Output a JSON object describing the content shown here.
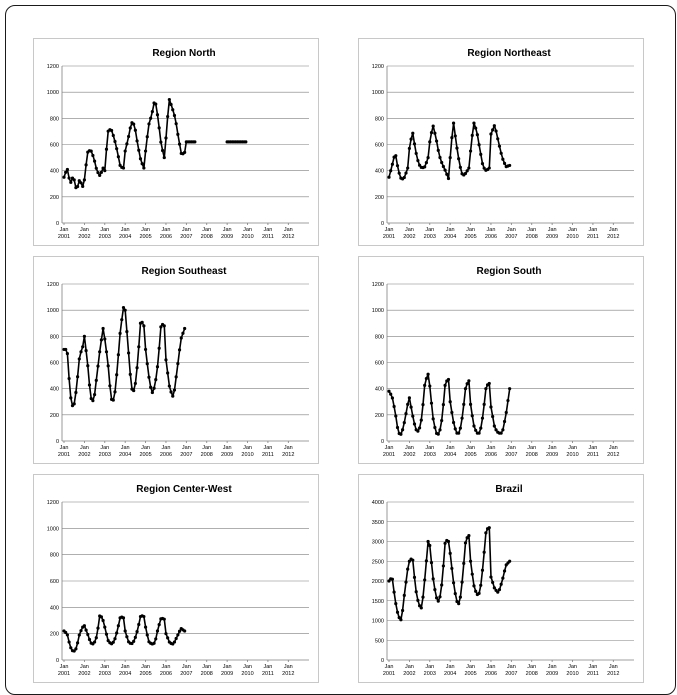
{
  "panels": [
    {
      "title": "Region North",
      "yticks": [
        "0",
        "200",
        "400",
        "600",
        "800",
        "1000",
        "1200"
      ],
      "ylim": [
        0,
        1200
      ]
    },
    {
      "title": "Region Northeast",
      "yticks": [
        "0",
        "200",
        "400",
        "600",
        "800",
        "1000",
        "1200"
      ],
      "ylim": [
        0,
        1200
      ]
    },
    {
      "title": "Region Southeast",
      "yticks": [
        "0",
        "200",
        "400",
        "600",
        "800",
        "1000",
        "1200"
      ],
      "ylim": [
        0,
        1200
      ]
    },
    {
      "title": "Region South",
      "yticks": [
        "0",
        "200",
        "400",
        "600",
        "800",
        "1000",
        "1200"
      ],
      "ylim": [
        0,
        1200
      ]
    },
    {
      "title": "Region Center-West",
      "yticks": [
        "0",
        "200",
        "400",
        "600",
        "800",
        "1000",
        "1200"
      ],
      "ylim": [
        0,
        1200
      ]
    },
    {
      "title": "Brazil",
      "yticks": [
        "0",
        "500",
        "1000",
        "1500",
        "2000",
        "2500",
        "3000",
        "3500",
        "4000"
      ],
      "ylim": [
        0,
        4000
      ]
    }
  ],
  "xticks": [
    {
      "month": "Jan",
      "year": "2001"
    },
    {
      "month": "Jan",
      "year": "2002"
    },
    {
      "month": "Jan",
      "year": "2003"
    },
    {
      "month": "Jan",
      "year": "2004"
    },
    {
      "month": "Jan",
      "year": "2005"
    },
    {
      "month": "Jan",
      "year": "2006"
    },
    {
      "month": "Jan",
      "year": "2007"
    },
    {
      "month": "Jan",
      "year": "2008"
    },
    {
      "month": "Jan",
      "year": "2009"
    },
    {
      "month": "Jan",
      "year": "2010"
    },
    {
      "month": "Jan",
      "year": "2011"
    },
    {
      "month": "Jan",
      "year": "2012"
    }
  ],
  "chart_data": [
    {
      "type": "line",
      "title": "Region North",
      "xlabel": "",
      "ylabel": "",
      "ylim": [
        0,
        1200
      ],
      "grid": true,
      "x_start": "2001-01",
      "x_end": "2012-12",
      "gap": [
        "2007-07",
        "2008-12"
      ],
      "series": [
        {
          "values": [
            [
              350,
              420,
              300,
              360,
              250,
              330,
              280
            ],
            [
              330,
              540,
              560,
              500,
              400,
              360,
              420
            ],
            [
              400,
              700,
              720,
              650,
              550,
              430,
              420
            ],
            [
              550,
              650,
              770,
              750,
              600,
              480,
              420
            ],
            [
              550,
              750,
              830,
              950,
              800,
              600,
              500
            ],
            [
              650,
              950,
              880,
              800,
              650,
              520,
              540
            ],
            [
              620
            ]
          ]
        }
      ]
    },
    {
      "type": "line",
      "title": "Region Northeast",
      "xlabel": "",
      "ylabel": "",
      "ylim": [
        0,
        1200
      ],
      "grid": true,
      "x_start": "2001-01",
      "x_end": "2012-12",
      "gap": [
        "2007-07",
        "2008-12"
      ],
      "series": [
        {
          "values": [
            [
              350,
              440,
              540,
              400,
              330,
              350,
              420
            ],
            [
              570,
              700,
              550,
              450,
              420,
              430,
              500
            ],
            [
              620,
              750,
              650,
              520,
              450,
              400,
              340
            ],
            [
              500,
              780,
              600,
              450,
              360,
              380,
              420
            ],
            [
              550,
              770,
              700,
              560,
              430,
              400,
              420
            ],
            [
              680,
              750,
              620,
              500,
              430,
              440
            ]
          ]
        }
      ]
    },
    {
      "type": "line",
      "title": "Region Southeast",
      "xlabel": "",
      "ylabel": "",
      "ylim": [
        0,
        1200
      ],
      "grid": true,
      "x_start": "2001-01",
      "x_end": "2012-12",
      "gap": [
        "2007-07",
        "2008-12"
      ],
      "series": [
        {
          "values": [
            [
              700,
              700,
              350,
              240,
              400,
              650,
              720
            ],
            [
              800,
              600,
              330,
              300,
              500,
              700,
              860
            ],
            [
              780,
              600,
              320,
              310,
              550,
              850,
              1020
            ],
            [
              1000,
              700,
              400,
              380,
              600,
              930,
              880
            ],
            [
              700,
              500,
              360,
              420,
              600,
              900,
              880
            ],
            [
              620,
              400,
              330,
              550,
              780,
              860
            ]
          ]
        }
      ]
    },
    {
      "type": "line",
      "title": "Region South",
      "xlabel": "",
      "ylabel": "",
      "ylim": [
        0,
        1200
      ],
      "grid": true,
      "x_start": "2001-01",
      "x_end": "2012-12",
      "gap": [
        "2007-07",
        "2008-12"
      ],
      "series": [
        {
          "values": [
            [
              380,
              340,
              220,
              60,
              50,
              150,
              280
            ],
            [
              330,
              200,
              90,
              70,
              180,
              450,
              510
            ],
            [
              420,
              180,
              60,
              50,
              180,
              450,
              470
            ],
            [
              300,
              150,
              60,
              60,
              200,
              420,
              460
            ],
            [
              280,
              120,
              60,
              60,
              200,
              420,
              440
            ],
            [
              260,
              100,
              60,
              60,
              200,
              400
            ]
          ]
        }
      ]
    },
    {
      "type": "line",
      "title": "Region Center-West",
      "xlabel": "",
      "ylabel": "",
      "ylim": [
        0,
        1200
      ],
      "grid": true,
      "x_start": "2001-01",
      "x_end": "2012-12",
      "gap": [
        "2007-07",
        "2008-12"
      ],
      "series": [
        {
          "values": [
            [
              220,
              200,
              100,
              60,
              90,
              200,
              250
            ],
            [
              260,
              200,
              130,
              120,
              180,
              350,
              300
            ],
            [
              250,
              150,
              120,
              140,
              220,
              330,
              320
            ],
            [
              220,
              140,
              120,
              150,
              230,
              340,
              330
            ],
            [
              250,
              140,
              120,
              130,
              240,
              320,
              310
            ],
            [
              200,
              130,
              120,
              180,
              240,
              220
            ]
          ]
        }
      ]
    },
    {
      "type": "line",
      "title": "Brazil",
      "xlabel": "",
      "ylabel": "",
      "ylim": [
        0,
        4000
      ],
      "grid": true,
      "x_start": "2001-01",
      "x_end": "2012-12",
      "gap": [
        "2007-07",
        "2008-12"
      ],
      "series": [
        {
          "values": [
            [
              2000,
              2100,
              1500,
              1100,
              1000,
              1700,
              2300
            ],
            [
              2500,
              2600,
              1800,
              1400,
              1300,
              2100,
              3000
            ],
            [
              2900,
              2100,
              1600,
              1450,
              2000,
              3050,
              3000
            ],
            [
              2700,
              2000,
              1500,
              1400,
              2100,
              3050,
              3150
            ],
            [
              2500,
              1900,
              1650,
              1700,
              2400,
              3300,
              3350
            ],
            [
              2100,
              1800,
              1700,
              2000,
              2400,
              2500
            ]
          ]
        }
      ]
    }
  ]
}
